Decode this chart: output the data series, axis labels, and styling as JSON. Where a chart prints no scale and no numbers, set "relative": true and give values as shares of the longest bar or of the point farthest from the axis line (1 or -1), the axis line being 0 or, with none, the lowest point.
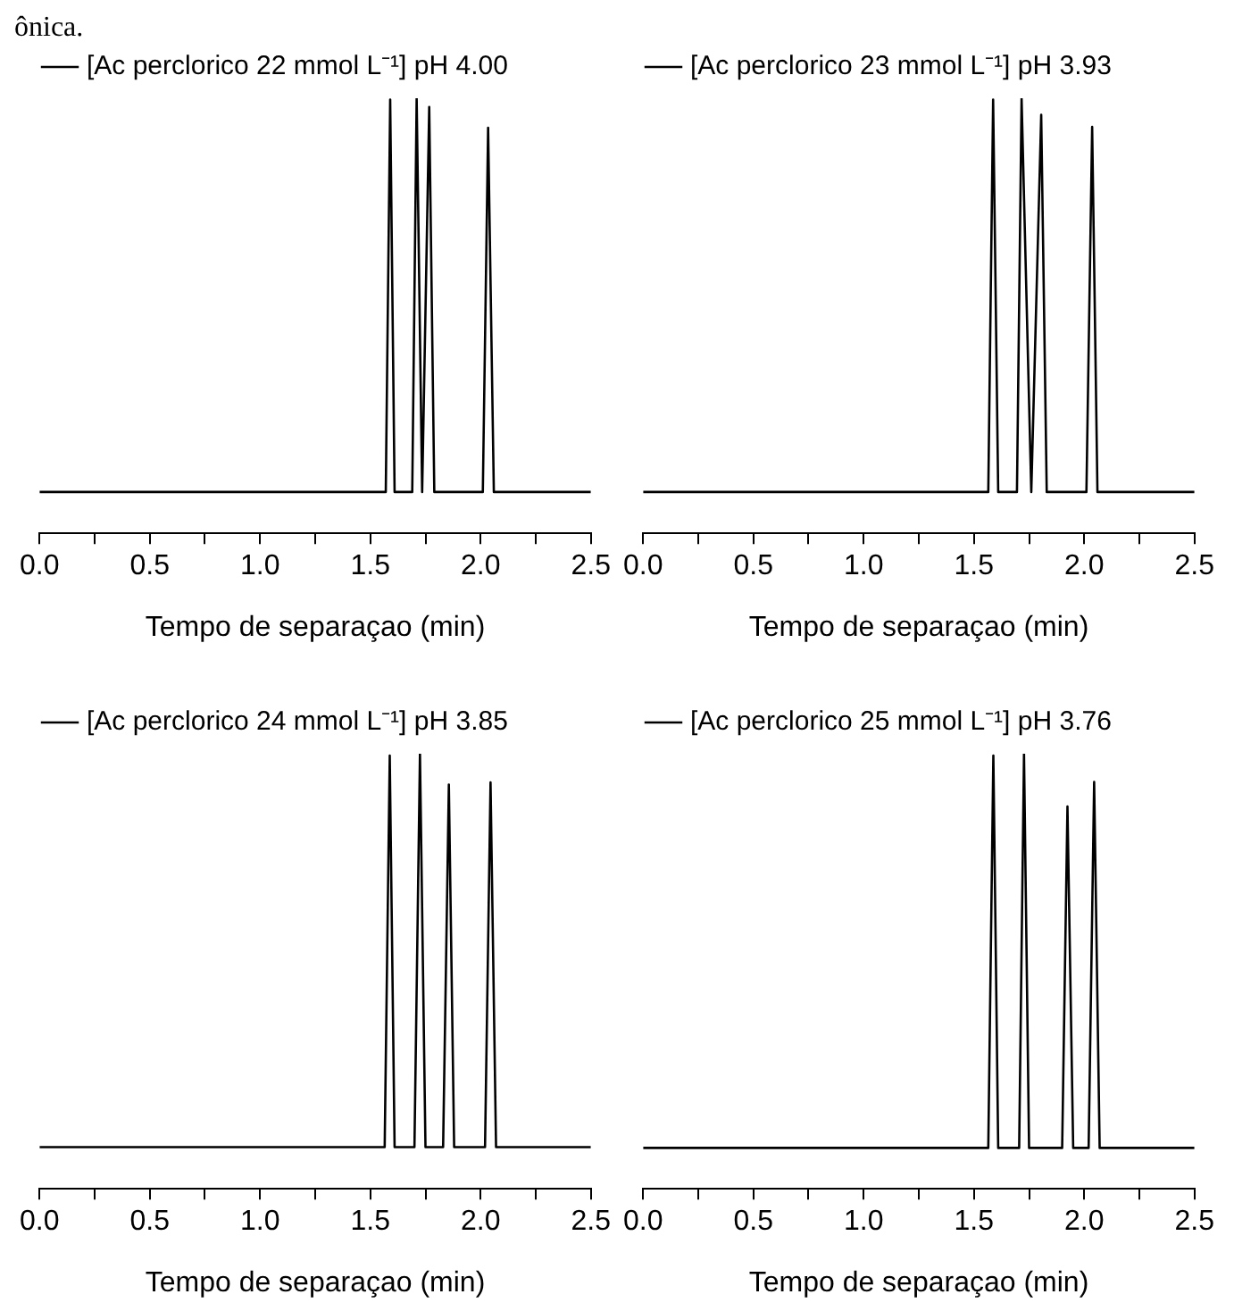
{
  "chart_data": [
    {
      "type": "line",
      "relative": true,
      "legend": "top",
      "marker": "none",
      "xlabel": "Tempo de separaçao (min)",
      "annotations": [
        "ônica."
      ],
      "xlim": [
        0,
        2.5
      ],
      "xticks": [
        {
          "value": 0,
          "label": "0.0"
        },
        {
          "value": 0.25,
          "label": null
        },
        0.5,
        {
          "value": 0.75,
          "label": null
        },
        {
          "value": 1,
          "label": "1.0"
        },
        {
          "value": 1.25,
          "label": null
        },
        1.5,
        {
          "value": 1.75,
          "label": null
        },
        {
          "value": 2,
          "label": "2.0"
        },
        {
          "value": 2.25,
          "label": null
        },
        2.5
      ],
      "x": [
        0,
        1.57,
        1.59,
        1.61,
        1.69,
        1.71,
        1.735,
        1.767,
        1.79,
        2.01,
        2.034,
        2.06,
        2.5
      ],
      "series": [
        {
          "name": "[Ac perclorico 22 mmol L⁻¹] pH 4.00",
          "color": "#000000",
          "values": [
            0.095,
            0.095,
            0.997,
            0.095,
            0.095,
            1,
            0.095,
            0.98,
            0.095,
            0.095,
            0.932,
            0.095,
            0.095
          ]
        }
      ]
    },
    {
      "type": "line",
      "relative": true,
      "legend": "top",
      "marker": "none",
      "xlabel": "Tempo de separaçao (min)",
      "xlim": [
        0,
        2.5
      ],
      "xticks": [
        {
          "value": 0,
          "label": "0.0"
        },
        {
          "value": 0.25,
          "label": null
        },
        0.5,
        {
          "value": 0.75,
          "label": null
        },
        {
          "value": 1,
          "label": "1.0"
        },
        {
          "value": 1.25,
          "label": null
        },
        1.5,
        {
          "value": 1.75,
          "label": null
        },
        {
          "value": 2,
          "label": "2.0"
        },
        {
          "value": 2.25,
          "label": null
        },
        2.5
      ],
      "x": [
        0,
        1.565,
        1.587,
        1.61,
        1.695,
        1.716,
        1.76,
        1.805,
        1.83,
        2.01,
        2.036,
        2.06,
        2.5
      ],
      "series": [
        {
          "name": "[Ac perclorico 23 mmol L⁻¹] pH 3.93",
          "color": "#000000",
          "values": [
            0.095,
            0.095,
            0.997,
            0.095,
            0.095,
            1,
            0.095,
            0.962,
            0.095,
            0.095,
            0.934,
            0.095,
            0.095
          ]
        }
      ]
    },
    {
      "type": "line",
      "relative": true,
      "legend": "top",
      "marker": "none",
      "xlabel": "Tempo de separaçao (min)",
      "xlim": [
        0,
        2.5
      ],
      "xticks": [
        {
          "value": 0,
          "label": "0.0"
        },
        {
          "value": 0.25,
          "label": null
        },
        0.5,
        {
          "value": 0.75,
          "label": null
        },
        {
          "value": 1,
          "label": "1.0"
        },
        {
          "value": 1.25,
          "label": null
        },
        1.5,
        {
          "value": 1.75,
          "label": null
        },
        {
          "value": 2,
          "label": "2.0"
        },
        {
          "value": 2.25,
          "label": null
        },
        2.5
      ],
      "x": [
        0,
        1.565,
        1.588,
        1.61,
        1.7,
        1.725,
        1.75,
        1.83,
        1.856,
        1.88,
        2.02,
        2.045,
        2.07,
        2.5
      ],
      "series": [
        {
          "name": "[Ac perclorico 24 mmol L⁻¹] pH 3.85",
          "color": "#000000",
          "values": [
            0.096,
            0.096,
            0.996,
            0.096,
            0.096,
            1,
            0.096,
            0.096,
            0.929,
            0.096,
            0.096,
            0.934,
            0.096,
            0.096
          ]
        }
      ]
    },
    {
      "type": "line",
      "relative": true,
      "legend": "top",
      "marker": "none",
      "xlabel": "Tempo de separaçao (min)",
      "xlim": [
        0,
        2.5
      ],
      "xticks": [
        {
          "value": 0,
          "label": "0.0"
        },
        {
          "value": 0.25,
          "label": null
        },
        0.5,
        {
          "value": 0.75,
          "label": null
        },
        {
          "value": 1,
          "label": "1.0"
        },
        {
          "value": 1.25,
          "label": null
        },
        1.5,
        {
          "value": 1.75,
          "label": null
        },
        {
          "value": 2,
          "label": "2.0"
        },
        {
          "value": 2.25,
          "label": null
        },
        2.5
      ],
      "x": [
        0,
        1.565,
        1.588,
        1.61,
        1.705,
        1.727,
        1.75,
        1.9,
        1.924,
        1.95,
        2.02,
        2.045,
        2.07,
        2.5
      ],
      "series": [
        {
          "name": "[Ac perclorico 25 mmol L⁻¹] pH 3.76",
          "color": "#000000",
          "values": [
            0.094,
            0.094,
            0.996,
            0.094,
            0.094,
            1,
            0.094,
            0.094,
            0.879,
            0.094,
            0.094,
            0.935,
            0.094,
            0.094
          ]
        }
      ]
    }
  ]
}
